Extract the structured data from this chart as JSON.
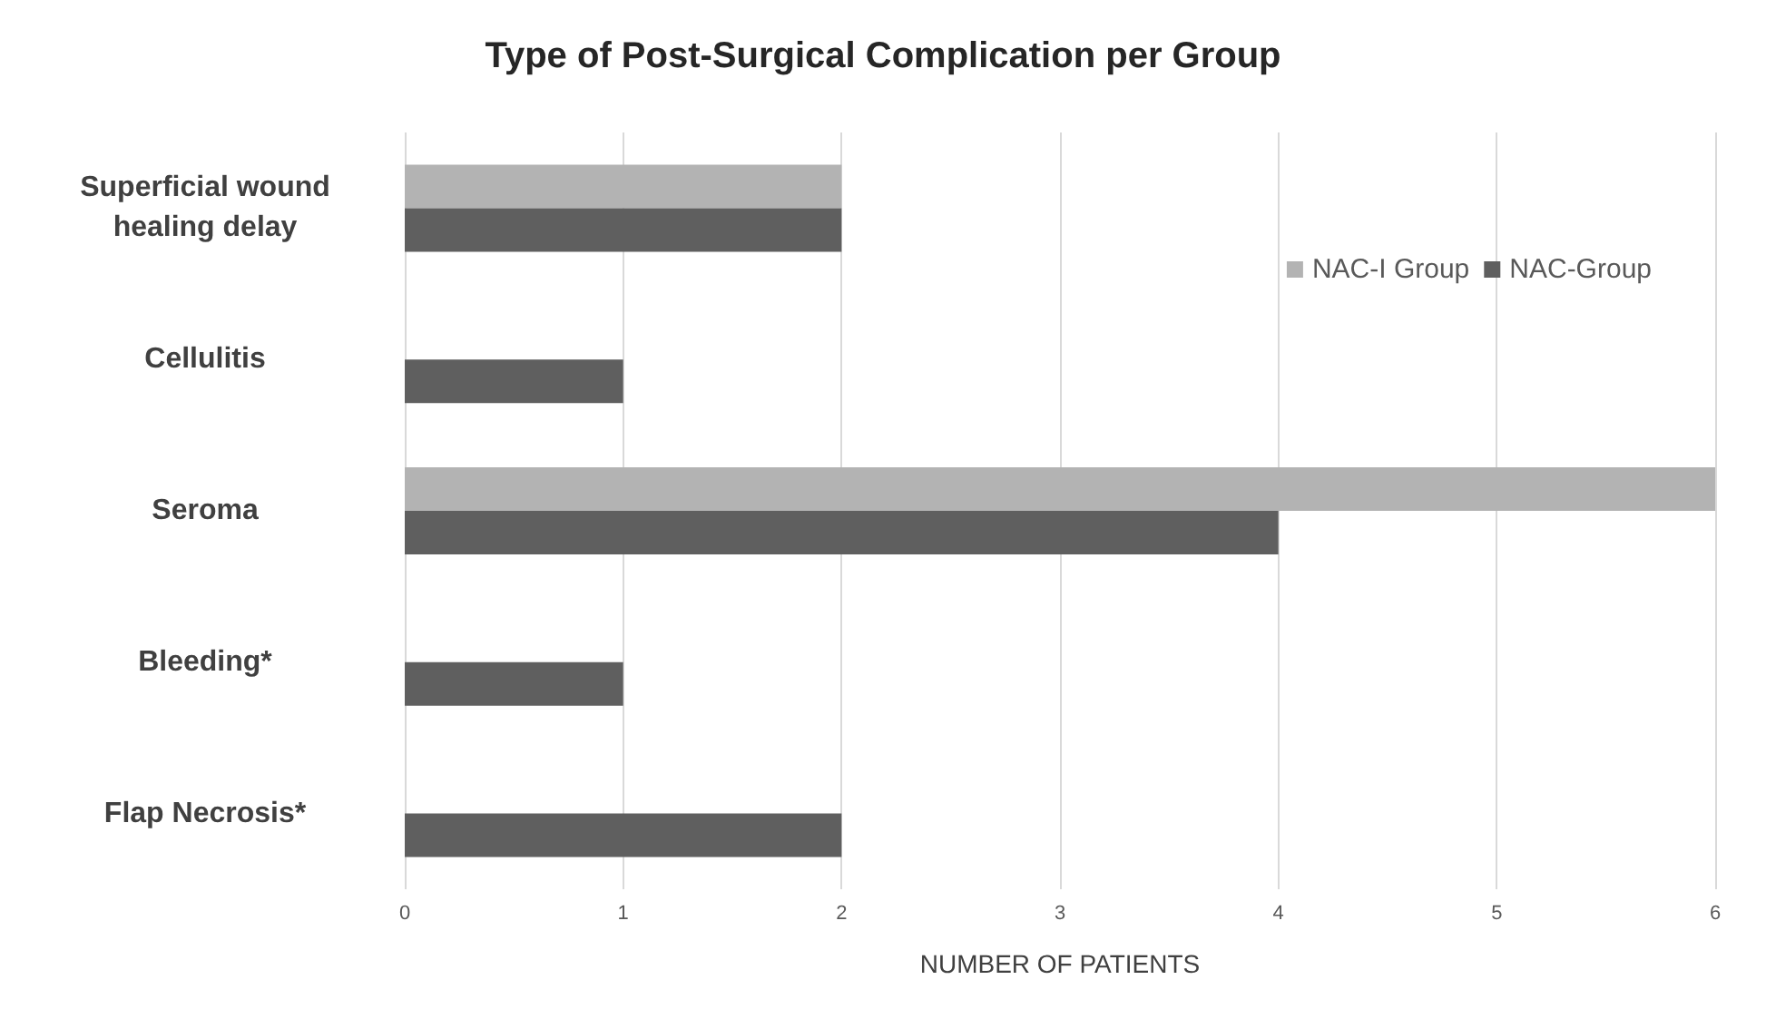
{
  "chart_data": {
    "type": "bar",
    "orientation": "horizontal",
    "title": "Type of Post-Surgical Complication per Group",
    "xlabel": "NUMBER OF PATIENTS",
    "categories": [
      "Superficial wound\nhealing delay",
      "Cellulitis",
      "Seroma",
      "Bleeding*",
      "Flap Necrosis*"
    ],
    "series": [
      {
        "name": "NAC-I Group",
        "color": "#b3b3b3",
        "values": [
          2,
          0,
          6,
          0,
          0
        ]
      },
      {
        "name": "NAC-Group",
        "color": "#5f5f5f",
        "values": [
          2,
          1,
          4,
          1,
          2
        ]
      }
    ],
    "xlim": [
      0,
      6
    ],
    "xticks": [
      0,
      1,
      2,
      3,
      4,
      5,
      6
    ],
    "grid": "x",
    "legend": "top right"
  }
}
